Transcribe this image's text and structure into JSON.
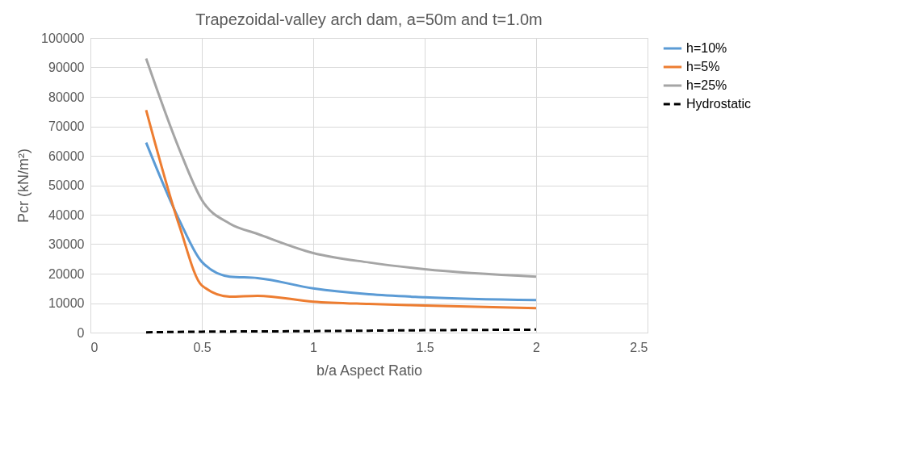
{
  "chart_data": {
    "type": "line",
    "title": "Trapezoidal-valley arch dam, a=50m and t=1.0m",
    "xlabel": "b/a Aspect Ratio",
    "ylabel": "Pcr (kN/m²)",
    "xlim": [
      0,
      2.5
    ],
    "xticks": [
      0,
      0.5,
      1,
      1.5,
      2,
      2.5
    ],
    "ylim": [
      0,
      100000
    ],
    "yticks": [
      0,
      10000,
      20000,
      30000,
      40000,
      50000,
      60000,
      70000,
      80000,
      90000,
      100000
    ],
    "grid": true,
    "legend": "right",
    "marker": "none",
    "series": [
      {
        "name": "h=10%",
        "color": "#5b9bd5",
        "line_style": "solid",
        "x": [
          0.25,
          0.4,
          0.5,
          0.625,
          0.75,
          1,
          1.25,
          1.5,
          2
        ],
        "values": [
          64500,
          38000,
          24000,
          19000,
          18500,
          15000,
          13000,
          12000,
          11000
        ]
      },
      {
        "name": "h=5%",
        "color": "#ed7d31",
        "line_style": "solid",
        "x": [
          0.25,
          0.4,
          0.5,
          0.625,
          0.75,
          1,
          1.25,
          1.5,
          2
        ],
        "values": [
          75500,
          36000,
          16000,
          12200,
          12500,
          10500,
          9700,
          9200,
          8300
        ]
      },
      {
        "name": "h=25%",
        "color": "#a5a5a5",
        "line_style": "solid",
        "x": [
          0.25,
          0.4,
          0.5,
          0.625,
          0.75,
          1,
          1.25,
          1.5,
          2
        ],
        "values": [
          93000,
          62000,
          45000,
          37000,
          33500,
          27000,
          23800,
          21500,
          19000
        ]
      },
      {
        "name": "Hydrostatic",
        "color": "#000000",
        "line_style": "dashed",
        "x": [
          0.25,
          0.5,
          1,
          1.5,
          2
        ],
        "values": [
          100,
          300,
          500,
          800,
          1000
        ]
      }
    ]
  }
}
